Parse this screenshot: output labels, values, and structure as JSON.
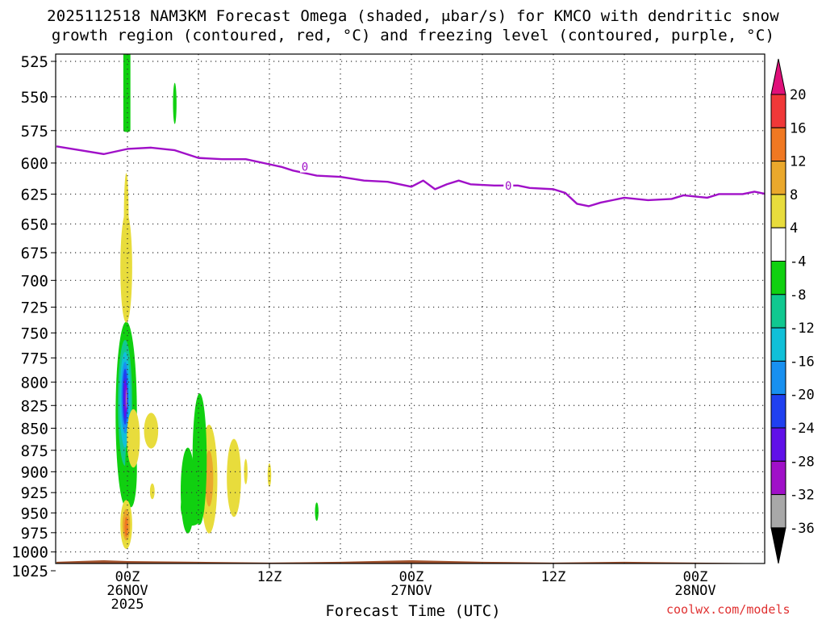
{
  "title": {
    "line1": "2025112518 NAM3KM Forecast Omega (shaded, μbar/s) for KMCO with dendritic snow",
    "line2": "growth region (contoured, red, °C) and freezing level (contoured, purple, °C)"
  },
  "credit": "coolwx.com/models",
  "chart_data": {
    "type": "heatmap",
    "xlabel": "Forecast Time (UTC)",
    "x_range_hours": [
      -6,
      54
    ],
    "x_ticks": [
      {
        "hour": 0,
        "lines": [
          "00Z",
          "26NOV",
          "2025"
        ]
      },
      {
        "hour": 12,
        "lines": [
          "12Z"
        ]
      },
      {
        "hour": 24,
        "lines": [
          "00Z",
          "27NOV"
        ]
      },
      {
        "hour": 36,
        "lines": [
          "12Z"
        ]
      },
      {
        "hour": 48,
        "lines": [
          "00Z",
          "28NOV"
        ]
      }
    ],
    "ylabel": "",
    "y_axis": "pressure (hPa), inverted",
    "ylim": [
      1025,
      525
    ],
    "y_ticks": [
      525,
      550,
      575,
      600,
      625,
      650,
      675,
      700,
      725,
      750,
      775,
      800,
      825,
      850,
      875,
      900,
      925,
      950,
      975,
      1000,
      1025
    ],
    "grid": true,
    "colorbar": {
      "levels": [
        20,
        16,
        12,
        8,
        4,
        -4,
        -8,
        -12,
        -16,
        -20,
        -24,
        -28,
        -32,
        -36
      ],
      "bins": [
        {
          "from": 16,
          "to": 20,
          "color": "#f03838"
        },
        {
          "from": 12,
          "to": 16,
          "color": "#f07822"
        },
        {
          "from": 8,
          "to": 12,
          "color": "#eaa82c"
        },
        {
          "from": 4,
          "to": 8,
          "color": "#e8dc3c"
        },
        {
          "from": -4,
          "to": 4,
          "color": "#ffffff"
        },
        {
          "from": -8,
          "to": -4,
          "color": "#10d010"
        },
        {
          "from": -12,
          "to": -8,
          "color": "#10c890"
        },
        {
          "from": -16,
          "to": -12,
          "color": "#10c0d8"
        },
        {
          "from": -20,
          "to": -16,
          "color": "#1890f0"
        },
        {
          "from": -24,
          "to": -20,
          "color": "#2040f0"
        },
        {
          "from": -28,
          "to": -24,
          "color": "#6010e8"
        },
        {
          "from": -32,
          "to": -28,
          "color": "#a010c8"
        },
        {
          "from": -36,
          "to": -32,
          "color": "#a8a8a8"
        }
      ],
      "above_color": "#e0107a",
      "below_color": "#000000"
    },
    "freezing_level": {
      "label": "0",
      "color": "#a010c8",
      "points": [
        [
          -6,
          587
        ],
        [
          -4,
          590
        ],
        [
          -2,
          593
        ],
        [
          0,
          589
        ],
        [
          2,
          588
        ],
        [
          4,
          590
        ],
        [
          5,
          593
        ],
        [
          6,
          596
        ],
        [
          8,
          597
        ],
        [
          10,
          597
        ],
        [
          12,
          601
        ],
        [
          13,
          603
        ],
        [
          14,
          606
        ],
        [
          16,
          610
        ],
        [
          18,
          611
        ],
        [
          20,
          614
        ],
        [
          22,
          615
        ],
        [
          24,
          619
        ],
        [
          25,
          614
        ],
        [
          26,
          621
        ],
        [
          27,
          617
        ],
        [
          28,
          614
        ],
        [
          29,
          617
        ],
        [
          31,
          618
        ],
        [
          33,
          618
        ],
        [
          34,
          620
        ],
        [
          36,
          621
        ],
        [
          37,
          624
        ],
        [
          38,
          633
        ],
        [
          39,
          635
        ],
        [
          40,
          632
        ],
        [
          42,
          628
        ],
        [
          44,
          630
        ],
        [
          46,
          629
        ],
        [
          47,
          626
        ],
        [
          49,
          628
        ],
        [
          50,
          625
        ],
        [
          52,
          625
        ],
        [
          53,
          623
        ],
        [
          54,
          625
        ]
      ]
    },
    "omega_features": [
      {
        "shape": "blob",
        "hour": -0.1,
        "p_top": 739,
        "p_bot": 943,
        "half_width_h": 0.9,
        "value": -6,
        "color": "#10d010"
      },
      {
        "shape": "blob",
        "hour": -0.2,
        "p_top": 757,
        "p_bot": 893,
        "half_width_h": 0.6,
        "value": -10,
        "color": "#10c890"
      },
      {
        "shape": "blob",
        "hour": -0.2,
        "p_top": 769,
        "p_bot": 872,
        "half_width_h": 0.45,
        "value": -14,
        "color": "#10c0d8"
      },
      {
        "shape": "blob",
        "hour": -0.2,
        "p_top": 779,
        "p_bot": 856,
        "half_width_h": 0.33,
        "value": -18,
        "color": "#1890f0"
      },
      {
        "shape": "blob",
        "hour": -0.2,
        "p_top": 786,
        "p_bot": 846,
        "half_width_h": 0.22,
        "value": -22,
        "color": "#2040f0"
      },
      {
        "shape": "blob",
        "hour": -0.2,
        "p_top": 796,
        "p_bot": 839,
        "half_width_h": 0.12,
        "value": -26,
        "color": "#6010e8"
      },
      {
        "shape": "blob",
        "hour": -0.1,
        "p_top": 803,
        "p_bot": 832,
        "half_width_h": 0.07,
        "value": -30,
        "color": "#a010c8"
      },
      {
        "shape": "blob",
        "hour": -0.1,
        "p_top": 808,
        "p_bot": 828,
        "half_width_h": 0.03,
        "value": -34,
        "color": "#a8a8a8"
      },
      {
        "shape": "blob",
        "hour": 0.3,
        "p_top": 855,
        "p_bot": 943,
        "half_width_h": 0.5,
        "value": -6,
        "color": "#10d010"
      },
      {
        "shape": "blob",
        "hour": -0.1,
        "p_top": 608,
        "p_bot": 682,
        "half_width_h": 0.2,
        "value": 5,
        "color": "#e8dc3c"
      },
      {
        "shape": "blob",
        "hour": -0.1,
        "p_top": 934,
        "p_bot": 996,
        "half_width_h": 0.5,
        "value": 5,
        "color": "#e8dc3c"
      },
      {
        "shape": "blob",
        "hour": -0.1,
        "p_top": 945,
        "p_bot": 985,
        "half_width_h": 0.32,
        "value": 10,
        "color": "#eaa82c"
      },
      {
        "shape": "blob",
        "hour": -0.1,
        "p_top": 955,
        "p_bot": 980,
        "half_width_h": 0.15,
        "value": 13,
        "color": "#f07822"
      },
      {
        "shape": "blob",
        "hour": 5.1,
        "p_top": 872,
        "p_bot": 976,
        "half_width_h": 0.6,
        "value": -6,
        "color": "#10d010"
      },
      {
        "shape": "blob",
        "hour": 6.9,
        "p_top": 846,
        "p_bot": 976,
        "half_width_h": 0.7,
        "value": 5,
        "color": "#e8dc3c"
      },
      {
        "shape": "blob",
        "hour": 6.9,
        "p_top": 875,
        "p_bot": 942,
        "half_width_h": 0.35,
        "value": 9,
        "color": "#eaa82c"
      },
      {
        "shape": "blob",
        "hour": 9.0,
        "p_top": 862,
        "p_bot": 955,
        "half_width_h": 0.6,
        "value": 5,
        "color": "#e8dc3c"
      },
      {
        "shape": "rect",
        "hour": -0.05,
        "p_top": 525,
        "p_bot": 576,
        "half_width_h": 0.3,
        "value": -6,
        "color": "#10d010"
      },
      {
        "shape": "blob",
        "hour": -0.1,
        "p_top": 640,
        "p_bot": 740,
        "half_width_h": 0.5,
        "value": 5,
        "color": "#e8dc3c"
      },
      {
        "shape": "blob",
        "hour": 6.1,
        "p_top": 812,
        "p_bot": 965,
        "half_width_h": 0.6,
        "value": -6,
        "color": "#10d010"
      },
      {
        "shape": "blob",
        "hour": 5.5,
        "p_top": 920,
        "p_bot": 966,
        "half_width_h": 1.0,
        "value": -6,
        "color": "#10d010"
      },
      {
        "shape": "blob",
        "hour": 10.0,
        "p_top": 885,
        "p_bot": 915,
        "half_width_h": 0.15,
        "value": 5,
        "color": "#e8dc3c"
      },
      {
        "shape": "blob",
        "hour": 12.0,
        "p_top": 890,
        "p_bot": 918,
        "half_width_h": 0.15,
        "value": 5,
        "color": "#e8dc3c"
      },
      {
        "shape": "blob",
        "hour": 16.0,
        "p_top": 937,
        "p_bot": 960,
        "half_width_h": 0.15,
        "value": -6,
        "color": "#10d010"
      },
      {
        "shape": "blob",
        "hour": 4.0,
        "p_top": 540,
        "p_bot": 570,
        "half_width_h": 0.15,
        "value": -6,
        "color": "#10d010"
      },
      {
        "shape": "blob",
        "hour": 0.5,
        "p_top": 829,
        "p_bot": 895,
        "half_width_h": 0.55,
        "value": 5,
        "color": "#e8dc3c"
      },
      {
        "shape": "blob",
        "hour": 2.0,
        "p_top": 833,
        "p_bot": 873,
        "half_width_h": 0.6,
        "value": 5,
        "color": "#e8dc3c"
      },
      {
        "shape": "blob",
        "hour": 2.1,
        "p_top": 914,
        "p_bot": 933,
        "half_width_h": 0.2,
        "value": 5,
        "color": "#e8dc3c"
      }
    ],
    "terrain": {
      "color": "#a0522d",
      "surface_points": [
        [
          -6,
          1013
        ],
        [
          -2,
          1011
        ],
        [
          0,
          1012
        ],
        [
          6,
          1013
        ],
        [
          12,
          1014
        ],
        [
          18,
          1013
        ],
        [
          24,
          1011
        ],
        [
          30,
          1013
        ],
        [
          36,
          1014
        ],
        [
          42,
          1013
        ],
        [
          48,
          1014
        ],
        [
          54,
          1015
        ]
      ]
    }
  }
}
